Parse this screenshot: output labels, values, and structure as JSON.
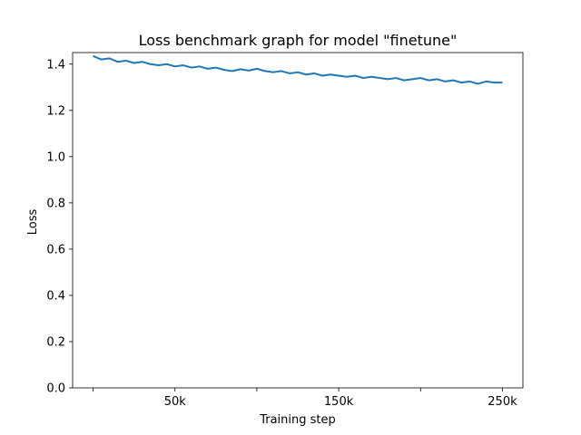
{
  "chart_data": {
    "type": "line",
    "title": "Loss benchmark graph for model \"finetune\"",
    "xlabel": "Training step",
    "ylabel": "Loss",
    "xlim": [
      -12500,
      262500
    ],
    "ylim": [
      0.0,
      1.45
    ],
    "xticks": [
      {
        "value": 0,
        "label": ""
      },
      {
        "value": 50000,
        "label": "50k"
      },
      {
        "value": 100000,
        "label": ""
      },
      {
        "value": 150000,
        "label": "150k"
      },
      {
        "value": 200000,
        "label": ""
      },
      {
        "value": 250000,
        "label": "250k"
      }
    ],
    "yticks": [
      0.0,
      0.2,
      0.4,
      0.6,
      0.8,
      1.0,
      1.2,
      1.4
    ],
    "ytick_labels": [
      "0.0",
      "0.2",
      "0.4",
      "0.6",
      "0.8",
      "1.0",
      "1.2",
      "1.4"
    ],
    "grid": false,
    "series": [
      {
        "color": "#1f77b4",
        "x": [
          0,
          5000,
          10000,
          15000,
          20000,
          25000,
          30000,
          35000,
          40000,
          45000,
          50000,
          55000,
          60000,
          65000,
          70000,
          75000,
          80000,
          85000,
          90000,
          95000,
          100000,
          105000,
          110000,
          115000,
          120000,
          125000,
          130000,
          135000,
          140000,
          145000,
          150000,
          155000,
          160000,
          165000,
          170000,
          175000,
          180000,
          185000,
          190000,
          195000,
          200000,
          205000,
          210000,
          215000,
          220000,
          225000,
          230000,
          235000,
          240000,
          245000,
          250000
        ],
        "y": [
          1.435,
          1.42,
          1.425,
          1.41,
          1.415,
          1.405,
          1.41,
          1.4,
          1.395,
          1.4,
          1.39,
          1.395,
          1.385,
          1.39,
          1.38,
          1.385,
          1.375,
          1.37,
          1.378,
          1.372,
          1.38,
          1.37,
          1.365,
          1.37,
          1.36,
          1.365,
          1.355,
          1.36,
          1.35,
          1.355,
          1.35,
          1.345,
          1.35,
          1.34,
          1.345,
          1.34,
          1.335,
          1.34,
          1.33,
          1.335,
          1.34,
          1.33,
          1.335,
          1.325,
          1.33,
          1.32,
          1.325,
          1.315,
          1.325,
          1.32,
          1.32
        ]
      }
    ]
  }
}
